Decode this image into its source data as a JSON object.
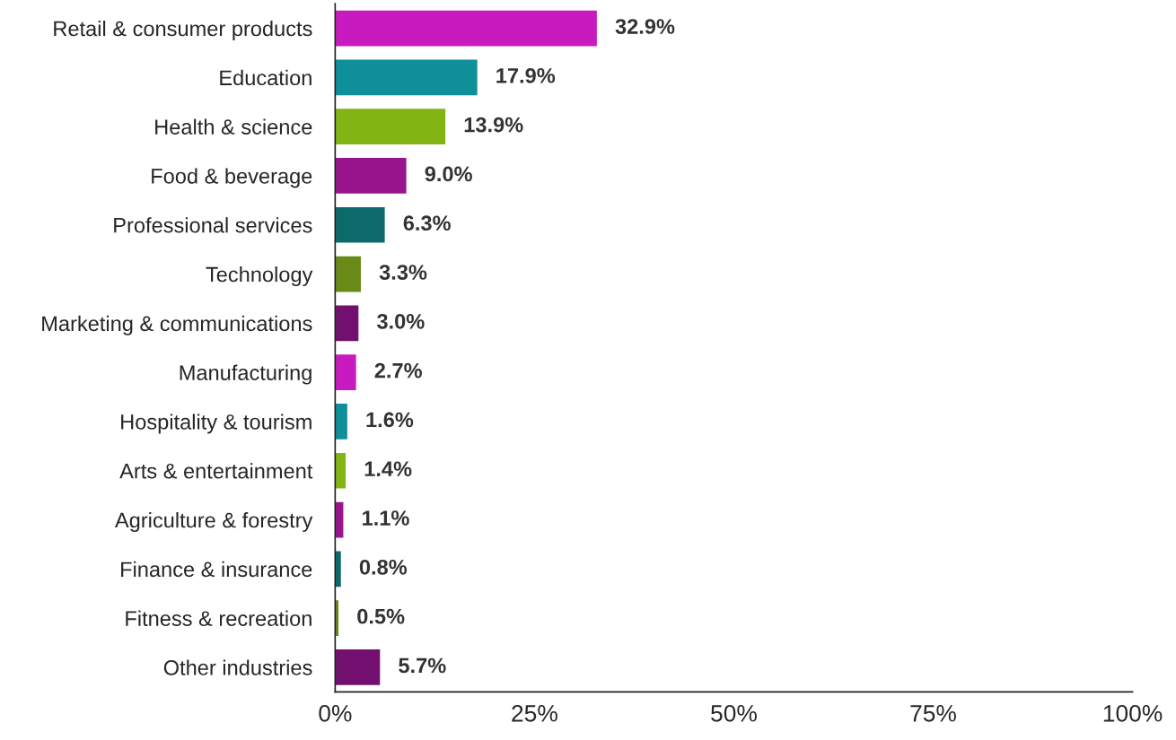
{
  "chart_data": {
    "type": "bar",
    "orientation": "horizontal",
    "categories": [
      "Retail & consumer products",
      "Education",
      "Health & science",
      "Food & beverage",
      "Professional services",
      "Technology",
      "Marketing & communications",
      "Manufacturing",
      "Hospitality & tourism",
      "Arts & entertainment",
      "Agriculture & forestry",
      "Finance & insurance",
      "Fitness & recreation",
      "Other industries"
    ],
    "values": [
      32.9,
      17.9,
      13.9,
      9.0,
      6.3,
      3.3,
      3.0,
      2.7,
      1.6,
      1.4,
      1.1,
      0.8,
      0.5,
      5.7
    ],
    "value_labels": [
      "32.9%",
      "17.9%",
      "13.9%",
      "9.0%",
      "6.3%",
      "3.3%",
      "3.0%",
      "2.7%",
      "1.6%",
      "1.4%",
      "1.1%",
      "0.8%",
      "0.5%",
      "5.7%"
    ],
    "colors": [
      "#c81bbf",
      "#0e8f99",
      "#82b414",
      "#98148c",
      "#0d6a6b",
      "#6a8a17",
      "#730f6e",
      "#c81bbf",
      "#0e8f99",
      "#82b414",
      "#98148c",
      "#0d6a6b",
      "#6a8a17",
      "#730f6e"
    ],
    "xlim": [
      0,
      100
    ],
    "xticks": [
      {
        "value": 0,
        "label": "0%"
      },
      {
        "value": 25,
        "label": "25%"
      },
      {
        "value": 50,
        "label": "50%"
      },
      {
        "value": 75,
        "label": "75%"
      },
      {
        "value": 100,
        "label": "100%"
      }
    ],
    "grid": false,
    "legend": false
  }
}
